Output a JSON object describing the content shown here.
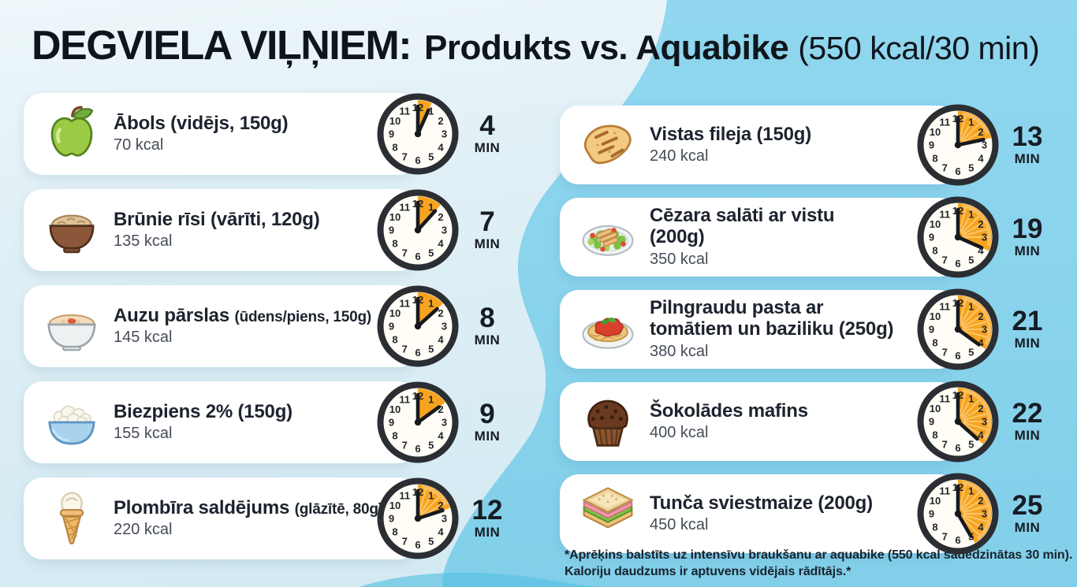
{
  "title": {
    "part1": "DEGVIELA VIĻŅIEM:",
    "part2": "Produkts vs. Aquabike",
    "part3": "(550 kcal/30 min)"
  },
  "unit_label": "MIN",
  "colors": {
    "background_left": "#d8ecf4",
    "background_right_wave": "#8bd3ec",
    "bottom_wave": "#57c0e2",
    "card": "#ffffff",
    "clock_ring": "#2b2e33",
    "clock_face": "#fffdf5",
    "clock_wedge_orange": "#F6A41F",
    "text_dark": "#1d232e",
    "text_gray": "#454c58"
  },
  "columns": {
    "left": [
      {
        "icon": "apple-icon",
        "name": "Ābols (vidējs, 150g)",
        "kcal": "70 kcal",
        "minutes": 4
      },
      {
        "icon": "rice-bowl-icon",
        "name": "Brūnie rīsi (vārīti, 120g)",
        "kcal": "135 kcal",
        "minutes": 7
      },
      {
        "icon": "oatmeal-icon",
        "name": "Auzu pārslas",
        "name_small": "(ūdens/piens, 150g)",
        "kcal": "145 kcal",
        "minutes": 8
      },
      {
        "icon": "cottage-cheese-icon",
        "name": "Biezpiens 2% (150g)",
        "kcal": "155 kcal",
        "minutes": 9
      },
      {
        "icon": "ice-cream-icon",
        "name": "Plombīra saldējums",
        "name_small": "(glāzītē, 80g)",
        "kcal": "220 kcal",
        "minutes": 12
      }
    ],
    "right": [
      {
        "icon": "chicken-fillet-icon",
        "name": "Vistas fileja (150g)",
        "kcal": "240 kcal",
        "minutes": 13
      },
      {
        "icon": "caesar-salad-icon",
        "name": "Cēzara salāti ar vistu",
        "name_line2": "(200g)",
        "kcal": "350 kcal",
        "minutes": 19
      },
      {
        "icon": "pasta-icon",
        "name": "Pilngraudu pasta ar",
        "name_line2": "tomātiem un baziliku (250g)",
        "kcal": "380 kcal",
        "minutes": 21
      },
      {
        "icon": "muffin-icon",
        "name": "Šokolādes mafins",
        "kcal": "400 kcal",
        "minutes": 22
      },
      {
        "icon": "sandwich-icon",
        "name": "Tunča sviestmaize (200g)",
        "kcal": "450 kcal",
        "minutes": 25
      }
    ]
  },
  "footnote": {
    "line1": "*Aprēķins balstīts uz intensīvu braukšanu ar aquabike (550 kcal sadedzinātas 30 min).",
    "line2": "Kaloriju daudzums ir aptuvens vidējais rādītājs.*"
  },
  "chart_data": {
    "type": "table",
    "title": "DEGVIELA VIĻŅIEM: Produkts vs. Aquabike (550 kcal/30 min)",
    "unit": "MIN",
    "burn_rate": "550 kcal / 30 min",
    "categories": [
      "Ābols (vidējs, 150g)",
      "Brūnie rīsi (vārīti, 120g)",
      "Auzu pārslas (ūdens/piens, 150g)",
      "Biezpiens 2% (150g)",
      "Plombīra saldējums (glāzītē, 80g)",
      "Vistas fileja (150g)",
      "Cēzara salāti ar vistu (200g)",
      "Pilngraudu pasta ar tomātiem un baziliku (250g)",
      "Šokolādes mafins",
      "Tunča sviestmaize (200g)"
    ],
    "series": [
      {
        "name": "kcal",
        "values": [
          70,
          135,
          145,
          155,
          220,
          240,
          350,
          380,
          400,
          450
        ]
      },
      {
        "name": "minutes",
        "values": [
          4,
          7,
          8,
          9,
          12,
          13,
          19,
          21,
          22,
          25
        ]
      }
    ]
  }
}
